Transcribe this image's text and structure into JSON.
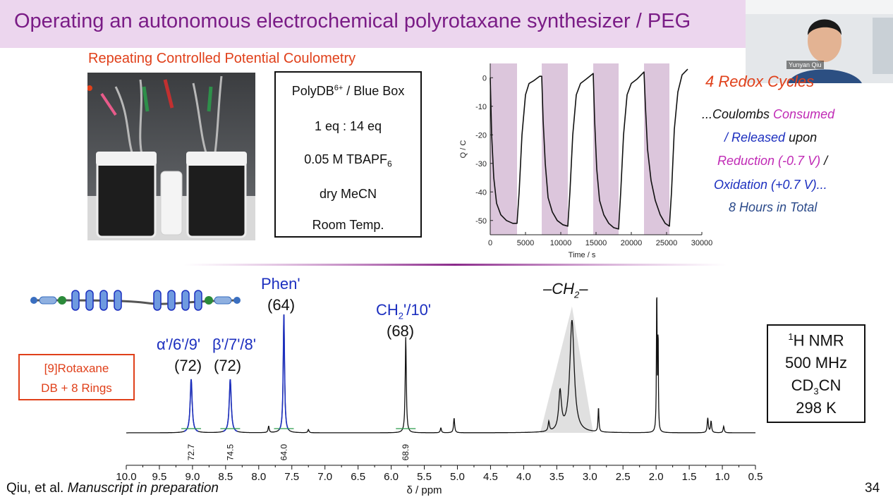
{
  "slide": {
    "title": "Operating an autonomous electrochemical polyrotaxane synthesizer / PEG",
    "subtitle": "Repeating Controlled Potential Coulometry",
    "page_number": "34",
    "citation_prefix": "Qiu, et al. ",
    "citation_italic": "Manuscript in preparation"
  },
  "conditions": {
    "line1_main": "PolyDB",
    "line1_sup": "6+",
    "line1_rest": " / Blue Box",
    "line2": "1 eq : 14 eq",
    "line3_main": "0.05 M TBAPF",
    "line3_sub": "6",
    "line4": "dry MeCN",
    "line5": "Room Temp."
  },
  "webcam": {
    "name": "Yunyan Qiu"
  },
  "redox": {
    "title": "4 Redox Cycles",
    "l1a": "...Coulombs ",
    "l1b": "Consumed",
    "l2a": "/ Released",
    "l2b": " upon",
    "l3a": "Reduction (-0.7 V)",
    "l3b": " /",
    "l4": "Oxidation (+0.7 V)...",
    "l5": "8 Hours in Total"
  },
  "nmr_box": {
    "l1_sup": "1",
    "l1_rest": "H NMR",
    "l2": "500 MHz",
    "l3_a": "CD",
    "l3_sub": "3",
    "l3_b": "CN",
    "l4": "298 K"
  },
  "rotaxane_box": {
    "l1": "[9]Rotaxane",
    "l2": "DB + 8 Rings"
  },
  "peak_labels": {
    "alpha": "α'/6'/9'",
    "alpha_n": "(72)",
    "beta": "β'/7'/8'",
    "beta_n": "(72)",
    "phen": "Phen'",
    "phen_n": "(64)",
    "ch2_a": "CH",
    "ch2_sub": "2",
    "ch2_b": "'/10'",
    "ch2_n": "(68)",
    "ch2_chain_a": "–CH",
    "ch2_chain_sub": "2",
    "ch2_chain_b": "–"
  },
  "colors": {
    "title": "#7a1c86",
    "accent_red": "#e0401a",
    "magenta": "#c02ab5",
    "blue": "#1c2fbf",
    "shade": "#dcc6dc"
  },
  "chart_data": [
    {
      "type": "line",
      "title": "",
      "xlabel": "Time / s",
      "ylabel": "Q / C",
      "xlim": [
        0,
        30000
      ],
      "ylim": [
        -55,
        5
      ],
      "xticks": [
        0,
        5000,
        10000,
        15000,
        20000,
        25000,
        30000
      ],
      "yticks": [
        0,
        -10,
        -20,
        -30,
        -40,
        -50
      ],
      "shaded_intervals": [
        [
          0,
          3800
        ],
        [
          7300,
          11000
        ],
        [
          14600,
          18200
        ],
        [
          21800,
          25400
        ]
      ],
      "series": [
        {
          "x": [
            0,
            200,
            500,
            900,
            1500,
            2300,
            3200,
            3800,
            4100,
            4500,
            5000,
            5500,
            6200,
            7000,
            7300,
            7500,
            7800,
            8200,
            8800,
            9500,
            10300,
            11000,
            11300,
            11700,
            12200,
            12800,
            13600,
            14600,
            14800,
            15100,
            15500,
            16100,
            16800,
            17500,
            18200,
            18500,
            18900,
            19400,
            20000,
            20800,
            21800,
            22000,
            22300,
            22800,
            23400,
            24100,
            24800,
            25400,
            25700,
            26100,
            26600,
            27200,
            28000
          ],
          "y": [
            0,
            -20,
            -35,
            -44,
            -48,
            -50,
            -51,
            -51,
            -40,
            -20,
            -6,
            -2,
            -1,
            0.5,
            0.5,
            -15,
            -30,
            -42,
            -47,
            -50,
            -51.5,
            -52,
            -40,
            -20,
            -6,
            -2,
            -0.5,
            1.5,
            -15,
            -32,
            -43,
            -48,
            -51,
            -52.5,
            -53,
            -40,
            -20,
            -6,
            -2,
            -0.5,
            2,
            -10,
            -25,
            -36,
            -43,
            -48,
            -51,
            -52,
            -40,
            -18,
            -5,
            1,
            3
          ]
        }
      ]
    },
    {
      "type": "line",
      "title": "",
      "xlabel": "δ / ppm",
      "ylabel": "",
      "xlim": [
        10.0,
        0.5
      ],
      "x_reversed": true,
      "xticks": [
        10.0,
        9.5,
        9.0,
        8.5,
        8.0,
        7.5,
        7.0,
        6.5,
        6.0,
        5.5,
        5.0,
        4.5,
        4.0,
        3.5,
        3.0,
        2.5,
        2.0,
        1.5,
        1.0,
        0.5
      ],
      "xtick_labels": [
        "10.0",
        "9.5",
        "9.0",
        "8.5",
        "8.0",
        "7.5",
        "7.0",
        "6.5",
        "6.0",
        "5.5",
        "5.0",
        "4.5",
        "4.0",
        "3.5",
        "3.0",
        "2.5",
        "2.0",
        "1.5",
        "1.0",
        "0.5"
      ],
      "integrals": [
        {
          "x": 9.02,
          "label": "72.7"
        },
        {
          "x": 8.43,
          "label": "74.5"
        },
        {
          "x": 7.62,
          "label": "64.0"
        },
        {
          "x": 5.78,
          "label": "68.9"
        }
      ],
      "peaks": [
        {
          "ppm": 9.02,
          "height": 0.33,
          "w": 0.018,
          "series": "labeled"
        },
        {
          "ppm": 8.43,
          "height": 0.33,
          "w": 0.018,
          "series": "labeled"
        },
        {
          "ppm": 7.62,
          "height": 0.73,
          "w": 0.012,
          "series": "labeled"
        },
        {
          "ppm": 5.78,
          "height": 0.59,
          "w": 0.01,
          "series": "black"
        },
        {
          "ppm": 7.85,
          "height": 0.04,
          "w": 0.01,
          "series": "black"
        },
        {
          "ppm": 7.25,
          "height": 0.02,
          "w": 0.01,
          "series": "black"
        },
        {
          "ppm": 5.25,
          "height": 0.03,
          "w": 0.01,
          "series": "black"
        },
        {
          "ppm": 5.05,
          "height": 0.09,
          "w": 0.01,
          "series": "black"
        },
        {
          "ppm": 3.62,
          "height": 0.06,
          "w": 0.012,
          "series": "black"
        },
        {
          "ppm": 3.45,
          "height": 0.24,
          "w": 0.025,
          "series": "black"
        },
        {
          "ppm": 3.27,
          "height": 0.69,
          "w": 0.04,
          "series": "black"
        },
        {
          "ppm": 2.87,
          "height": 0.15,
          "w": 0.008,
          "series": "black"
        },
        {
          "ppm": 1.99,
          "height": 0.88,
          "w": 0.006,
          "series": "black"
        },
        {
          "ppm": 1.97,
          "height": 0.6,
          "w": 0.005,
          "series": "black"
        },
        {
          "ppm": 1.22,
          "height": 0.09,
          "w": 0.01,
          "series": "black"
        },
        {
          "ppm": 1.17,
          "height": 0.07,
          "w": 0.01,
          "series": "black"
        },
        {
          "ppm": 0.98,
          "height": 0.04,
          "w": 0.01,
          "series": "black"
        }
      ],
      "shaded_region": [
        3.75,
        2.95
      ]
    }
  ]
}
